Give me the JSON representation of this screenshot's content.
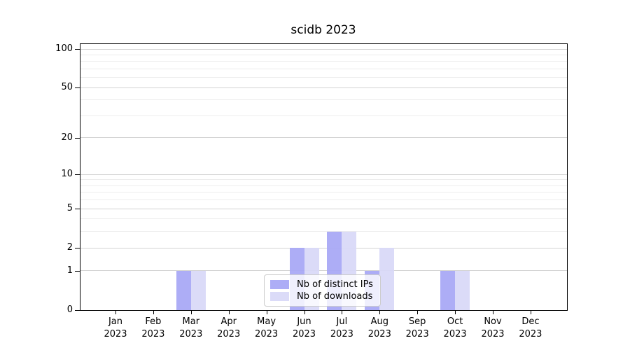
{
  "chart_data": {
    "type": "bar",
    "title": "scidb 2023",
    "x": [
      "Jan",
      "Feb",
      "Mar",
      "Apr",
      "May",
      "Jun",
      "Jul",
      "Aug",
      "Sep",
      "Oct",
      "Nov",
      "Dec"
    ],
    "x_year": "2023",
    "series": [
      {
        "name": "Nb of distinct IPs",
        "color": "#a7a7f5",
        "values": [
          0,
          0,
          1,
          0,
          0,
          2,
          3,
          1,
          0,
          1,
          0,
          0
        ]
      },
      {
        "name": "Nb of downloads",
        "color": "#d8d8f7",
        "values": [
          0,
          0,
          1,
          0,
          0,
          2,
          3,
          2,
          0,
          1,
          0,
          0
        ]
      }
    ],
    "yscale": "log1p",
    "ylim": [
      0,
      110
    ],
    "y_major_ticks": [
      0,
      1,
      2,
      5,
      10,
      20,
      50,
      100
    ],
    "y_minor_gridlines": [
      3,
      4,
      6,
      7,
      8,
      9,
      30,
      40,
      60,
      70,
      80,
      90
    ],
    "grid": true,
    "legend_position": "lower center"
  },
  "colors": {
    "grid_major": "#d2d2d2",
    "grid_minor": "#ececec",
    "spine": "#000000",
    "text": "#000000",
    "legend_border": "#cccccc"
  }
}
